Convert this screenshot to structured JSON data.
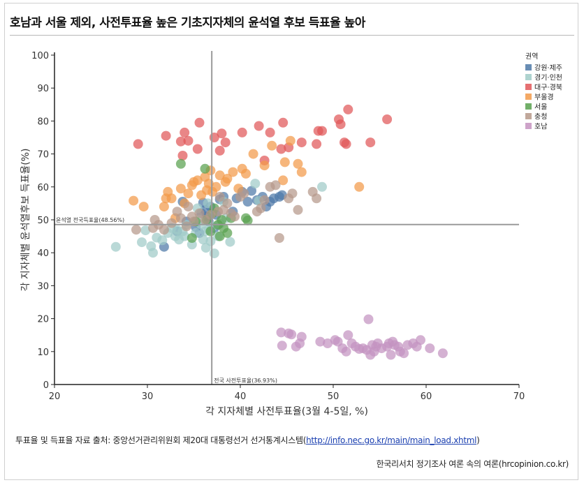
{
  "title": "호남과 서울 제외, 사전투표율 높은 기초지자체의 윤석열 후보 득표율 높아",
  "source_text": "투표율 및 득표율 자료 출처: 중앙선거관리위원회 제20대 대통령선거 선거통계시스템(",
  "source_link": "http://info.nec.go.kr/main/main_load.xhtml",
  "source_close": ")",
  "credit": "한국리서치 정기조사 여론 속의 여론(hrcopinion.co.kr)",
  "chart_data": {
    "type": "scatter",
    "xlabel": "각 지자체별 사전투표율(3월 4-5일, %)",
    "ylabel": "각 지자체별 윤석열후보 득표율(%)",
    "xlim": [
      20,
      70
    ],
    "ylim": [
      0,
      100
    ],
    "xticks": [
      20,
      30,
      40,
      50,
      60,
      70
    ],
    "yticks": [
      0,
      10,
      20,
      30,
      40,
      50,
      60,
      70,
      80,
      90,
      100
    ],
    "legend_title": "권역",
    "legend_position": "top-right",
    "reference_lines": {
      "vertical": {
        "value": 36.93,
        "label": "전국 사전투표율(36.93%)"
      },
      "horizontal": {
        "value": 48.56,
        "label": "윤석열 전국득표율(48.56%)"
      }
    },
    "series": [
      {
        "name": "강원·제주",
        "color": "#4e79a7",
        "points": [
          [
            31.8,
            41.8
          ],
          [
            33.2,
            46.5
          ],
          [
            33.8,
            55.5
          ],
          [
            34.2,
            49.5
          ],
          [
            35.2,
            47.8
          ],
          [
            35.6,
            46.0
          ],
          [
            35.8,
            52.0
          ],
          [
            36.0,
            55.2
          ],
          [
            36.2,
            53.0
          ],
          [
            36.4,
            51.0
          ],
          [
            36.6,
            49.5
          ],
          [
            36.8,
            54.0
          ],
          [
            37.2,
            47.5
          ],
          [
            37.4,
            51.5
          ],
          [
            37.8,
            56.2
          ],
          [
            38.2,
            57.0
          ],
          [
            39.2,
            52.5
          ],
          [
            39.6,
            56.5
          ],
          [
            40.2,
            58.5
          ],
          [
            40.8,
            55.5
          ],
          [
            41.2,
            58.8
          ],
          [
            41.8,
            56.0
          ],
          [
            42.4,
            57.0
          ],
          [
            42.8,
            54.0
          ],
          [
            43.2,
            55.5
          ],
          [
            43.6,
            56.5
          ],
          [
            44.2,
            57.0
          ],
          [
            44.5,
            57.5
          ]
        ]
      },
      {
        "name": "경기·인천",
        "color": "#a0cbc7",
        "points": [
          [
            26.6,
            41.8
          ],
          [
            29.4,
            43.2
          ],
          [
            29.8,
            46.8
          ],
          [
            30.4,
            42.0
          ],
          [
            30.6,
            40.0
          ],
          [
            31.0,
            44.6
          ],
          [
            31.6,
            43.8
          ],
          [
            32.2,
            46.0
          ],
          [
            32.6,
            47.5
          ],
          [
            33.0,
            45.0
          ],
          [
            33.4,
            44.0
          ],
          [
            33.8,
            46.5
          ],
          [
            34.2,
            48.5
          ],
          [
            34.8,
            42.5
          ],
          [
            35.2,
            46.0
          ],
          [
            35.6,
            50.0
          ],
          [
            35.8,
            48.5
          ],
          [
            36.0,
            44.0
          ],
          [
            36.2,
            46.5
          ],
          [
            36.5,
            55.0
          ],
          [
            36.6,
            47.0
          ],
          [
            36.8,
            43.5
          ],
          [
            37.0,
            48.0
          ],
          [
            37.2,
            39.8
          ],
          [
            37.6,
            45.0
          ],
          [
            37.8,
            48.8
          ],
          [
            38.2,
            55.5
          ],
          [
            38.5,
            50.5
          ],
          [
            38.9,
            43.3
          ],
          [
            41.6,
            61.0
          ],
          [
            42.0,
            55.8
          ],
          [
            48.8,
            60.0
          ],
          [
            35.4,
            53.5
          ],
          [
            34.0,
            45.0
          ],
          [
            33.2,
            47.0
          ],
          [
            36.3,
            41.5
          ]
        ]
      },
      {
        "name": "대구·경북",
        "color": "#e15759",
        "points": [
          [
            29.0,
            73.0
          ],
          [
            32.0,
            75.5
          ],
          [
            33.6,
            73.8
          ],
          [
            33.8,
            69.5
          ],
          [
            34.0,
            76.5
          ],
          [
            34.4,
            74.0
          ],
          [
            35.4,
            71.5
          ],
          [
            35.6,
            79.5
          ],
          [
            37.2,
            75.0
          ],
          [
            37.8,
            71.0
          ],
          [
            38.0,
            76.2
          ],
          [
            38.4,
            73.5
          ],
          [
            40.2,
            76.5
          ],
          [
            42.0,
            78.5
          ],
          [
            42.6,
            68.0
          ],
          [
            43.2,
            76.5
          ],
          [
            44.4,
            71.5
          ],
          [
            44.6,
            79.5
          ],
          [
            45.2,
            72.0
          ],
          [
            46.6,
            73.5
          ],
          [
            48.2,
            73.0
          ],
          [
            48.4,
            77.0
          ],
          [
            48.8,
            77.0
          ],
          [
            50.6,
            80.5
          ],
          [
            50.8,
            79.0
          ],
          [
            51.2,
            73.5
          ],
          [
            51.6,
            83.5
          ],
          [
            51.4,
            73.0
          ],
          [
            54.0,
            73.5
          ],
          [
            55.8,
            80.5
          ]
        ]
      },
      {
        "name": "부울경",
        "color": "#f29a4a",
        "points": [
          [
            28.5,
            55.8
          ],
          [
            29.6,
            54.0
          ],
          [
            31.8,
            54.0
          ],
          [
            32.0,
            56.5
          ],
          [
            32.2,
            58.5
          ],
          [
            32.6,
            56.5
          ],
          [
            33.0,
            50.5
          ],
          [
            33.6,
            59.5
          ],
          [
            34.0,
            55.0
          ],
          [
            34.4,
            58.0
          ],
          [
            34.8,
            60.5
          ],
          [
            35.0,
            61.5
          ],
          [
            35.4,
            62.0
          ],
          [
            35.8,
            57.5
          ],
          [
            36.2,
            63.0
          ],
          [
            36.4,
            59.0
          ],
          [
            36.6,
            61.0
          ],
          [
            36.8,
            65.0
          ],
          [
            37.0,
            58.5
          ],
          [
            37.4,
            60.0
          ],
          [
            37.8,
            63.5
          ],
          [
            38.4,
            61.5
          ],
          [
            38.6,
            62.5
          ],
          [
            39.2,
            64.5
          ],
          [
            39.8,
            59.5
          ],
          [
            40.2,
            65.5
          ],
          [
            40.6,
            64.0
          ],
          [
            41.4,
            70.0
          ],
          [
            42.6,
            66.5
          ],
          [
            43.4,
            72.5
          ],
          [
            44.6,
            62.0
          ],
          [
            44.8,
            67.5
          ],
          [
            45.4,
            74.0
          ],
          [
            46.2,
            67.0
          ],
          [
            46.6,
            64.5
          ],
          [
            52.8,
            60.0
          ]
        ]
      },
      {
        "name": "서울",
        "color": "#59a14f",
        "points": [
          [
            33.6,
            67.0
          ],
          [
            34.8,
            44.5
          ],
          [
            35.2,
            49.5
          ],
          [
            36.2,
            65.5
          ],
          [
            36.4,
            50.0
          ],
          [
            36.8,
            46.5
          ],
          [
            37.0,
            52.0
          ],
          [
            37.2,
            53.5
          ],
          [
            37.6,
            48.5
          ],
          [
            37.8,
            45.0
          ],
          [
            38.0,
            50.0
          ],
          [
            38.2,
            47.5
          ],
          [
            38.6,
            46.0
          ],
          [
            39.0,
            50.5
          ],
          [
            40.6,
            50.5
          ],
          [
            40.8,
            49.8
          ]
        ]
      },
      {
        "name": "충청",
        "color": "#b6998a",
        "points": [
          [
            28.8,
            47.0
          ],
          [
            30.6,
            47.5
          ],
          [
            30.8,
            50.0
          ],
          [
            31.2,
            48.5
          ],
          [
            31.8,
            47.0
          ],
          [
            32.6,
            49.0
          ],
          [
            33.2,
            52.5
          ],
          [
            33.6,
            50.5
          ],
          [
            34.2,
            48.0
          ],
          [
            34.8,
            51.0
          ],
          [
            35.6,
            52.0
          ],
          [
            36.2,
            50.0
          ],
          [
            36.8,
            51.5
          ],
          [
            37.6,
            52.5
          ],
          [
            37.8,
            57.0
          ],
          [
            38.2,
            53.0
          ],
          [
            38.6,
            55.0
          ],
          [
            39.4,
            51.0
          ],
          [
            40.0,
            57.0
          ],
          [
            40.4,
            58.0
          ],
          [
            41.8,
            52.5
          ],
          [
            42.2,
            53.5
          ],
          [
            42.6,
            56.0
          ],
          [
            43.2,
            60.0
          ],
          [
            43.8,
            60.5
          ],
          [
            44.2,
            44.5
          ],
          [
            45.2,
            56.5
          ],
          [
            45.6,
            58.0
          ],
          [
            46.2,
            53.0
          ],
          [
            47.8,
            58.5
          ],
          [
            48.2,
            56.5
          ],
          [
            39.0,
            52.0
          ],
          [
            34.4,
            54.0
          ],
          [
            35.0,
            49.5
          ]
        ]
      },
      {
        "name": "호남",
        "color": "#c493c0",
        "points": [
          [
            44.4,
            15.8
          ],
          [
            44.5,
            11.8
          ],
          [
            45.2,
            15.5
          ],
          [
            45.5,
            15.2
          ],
          [
            46.0,
            11.5
          ],
          [
            46.4,
            12.5
          ],
          [
            46.6,
            14.5
          ],
          [
            48.6,
            13.0
          ],
          [
            49.4,
            12.5
          ],
          [
            50.2,
            13.5
          ],
          [
            50.5,
            13.0
          ],
          [
            51.0,
            11.0
          ],
          [
            51.6,
            15.0
          ],
          [
            51.4,
            10.0
          ],
          [
            52.0,
            12.5
          ],
          [
            52.4,
            11.5
          ],
          [
            52.8,
            10.8
          ],
          [
            53.2,
            11.0
          ],
          [
            53.6,
            10.5
          ],
          [
            53.8,
            19.8
          ],
          [
            54.0,
            9.0
          ],
          [
            54.2,
            12.0
          ],
          [
            54.4,
            10.0
          ],
          [
            54.6,
            11.5
          ],
          [
            54.8,
            12.5
          ],
          [
            55.2,
            11.0
          ],
          [
            55.8,
            11.5
          ],
          [
            56.0,
            12.5
          ],
          [
            56.2,
            9.0
          ],
          [
            56.4,
            13.0
          ],
          [
            56.6,
            12.0
          ],
          [
            57.0,
            11.5
          ],
          [
            57.2,
            10.0
          ],
          [
            57.6,
            9.5
          ],
          [
            58.0,
            12.0
          ],
          [
            58.6,
            12.5
          ],
          [
            59.0,
            11.5
          ],
          [
            59.4,
            13.5
          ],
          [
            60.4,
            11.0
          ],
          [
            61.8,
            9.5
          ]
        ]
      }
    ]
  }
}
